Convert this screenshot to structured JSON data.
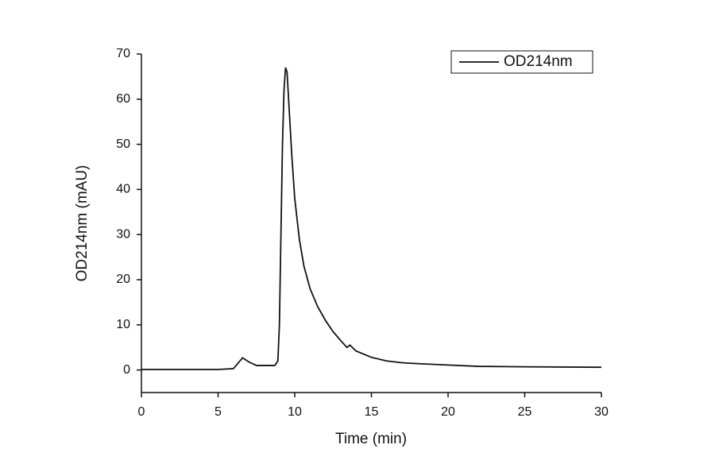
{
  "chart_data": {
    "type": "line",
    "x_label": "Time (min)",
    "y_label": "OD214nm (mAU)",
    "x": [
      0,
      5,
      6,
      6.3,
      6.6,
      7,
      7.5,
      8,
      8.7,
      8.9,
      9.0,
      9.1,
      9.2,
      9.3,
      9.4,
      9.5,
      9.6,
      9.8,
      10.0,
      10.3,
      10.6,
      11,
      11.5,
      12,
      12.5,
      13,
      13.4,
      13.6,
      14,
      15,
      16,
      17,
      18,
      20,
      22,
      25,
      30
    ],
    "series": [
      {
        "name": "OD214nm",
        "color": "#111111",
        "values": [
          0.1,
          0.1,
          0.3,
          1.5,
          2.7,
          1.8,
          1.0,
          1.0,
          1.0,
          2,
          10,
          30,
          50,
          62,
          67,
          66,
          60,
          48,
          38,
          29,
          23,
          18,
          14,
          11,
          8.5,
          6.5,
          5,
          5.5,
          4.2,
          2.8,
          2,
          1.6,
          1.4,
          1.1,
          0.8,
          0.7,
          0.6
        ]
      }
    ],
    "xlim": [
      0,
      30
    ],
    "xticks": [
      0,
      5,
      10,
      15,
      20,
      25,
      30
    ],
    "ylim": [
      -5,
      70
    ],
    "yticks": [
      0,
      10,
      20,
      30,
      40,
      50,
      60,
      70
    ],
    "legend": "upper right",
    "grid": false
  }
}
